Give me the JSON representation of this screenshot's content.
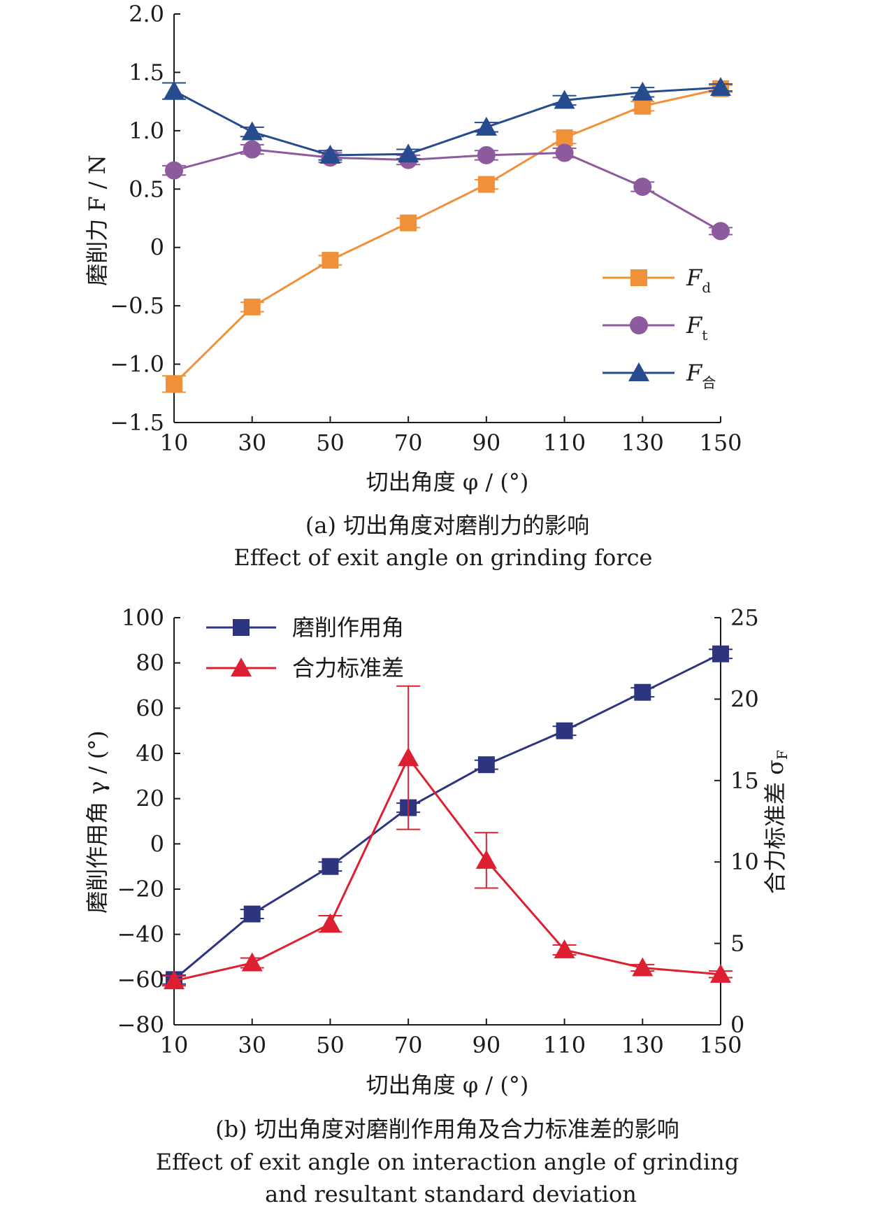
{
  "chart_data": [
    {
      "type": "line",
      "x": [
        10,
        30,
        50,
        70,
        90,
        110,
        130,
        150
      ],
      "xticks": [
        "10",
        "30",
        "50",
        "70",
        "90",
        "110",
        "130",
        "150"
      ],
      "xlim": [
        10,
        150
      ],
      "ylim": [
        -1.5,
        2.0
      ],
      "yticks": [
        "2.0",
        "1.5",
        "1.0",
        "0.5",
        "0",
        "−0.5",
        "−1.0",
        "−1.5"
      ],
      "ytick_values": [
        2.0,
        1.5,
        1.0,
        0.5,
        0,
        -0.5,
        -1.0,
        -1.5
      ],
      "xlabel": "切出角度 φ / (°)",
      "ylabel": "磨削力 F / N",
      "caption_cn": "(a) 切出角度对磨削力的影响",
      "caption_en": "Effect of exit angle on grinding force",
      "legend_position": "lower-right",
      "grid": false,
      "series": [
        {
          "name": "F",
          "sub": "d",
          "marker": "square",
          "color": "#f0913a",
          "values": [
            -1.17,
            -0.51,
            -0.11,
            0.21,
            0.54,
            0.94,
            1.21,
            1.36
          ],
          "errors": [
            0.07,
            0.04,
            0.04,
            0.04,
            0.04,
            0.05,
            0.04,
            0.03
          ]
        },
        {
          "name": "F",
          "sub": "t",
          "marker": "circle",
          "color": "#8e5a9e",
          "values": [
            0.66,
            0.84,
            0.77,
            0.75,
            0.79,
            0.81,
            0.52,
            0.14
          ],
          "errors": [
            0.04,
            0.04,
            0.04,
            0.04,
            0.04,
            0.04,
            0.04,
            0.03
          ]
        },
        {
          "name": "F",
          "sub": "合",
          "marker": "triangle",
          "color": "#264c8f",
          "values": [
            1.34,
            0.99,
            0.79,
            0.8,
            1.03,
            1.26,
            1.33,
            1.37
          ],
          "errors": [
            0.07,
            0.04,
            0.04,
            0.04,
            0.04,
            0.04,
            0.04,
            0.03
          ]
        }
      ]
    },
    {
      "type": "line",
      "x": [
        10,
        30,
        50,
        70,
        90,
        110,
        130,
        150
      ],
      "xticks": [
        "10",
        "30",
        "50",
        "70",
        "90",
        "110",
        "130",
        "150"
      ],
      "xlim": [
        10,
        150
      ],
      "ylim": [
        -80,
        100
      ],
      "yticks": [
        "100",
        "80",
        "60",
        "40",
        "20",
        "0",
        "−20",
        "−40",
        "−60",
        "−80"
      ],
      "ytick_values": [
        100,
        80,
        60,
        40,
        20,
        0,
        -20,
        -40,
        -60,
        -80
      ],
      "y2lim": [
        0,
        25
      ],
      "y2ticks": [
        "25",
        "20",
        "15",
        "10",
        "5",
        "0"
      ],
      "y2tick_values": [
        25,
        20,
        15,
        10,
        5,
        0
      ],
      "xlabel": "切出角度 φ / (°)",
      "ylabel": "磨削作用角 γ / (°)",
      "y2label": "合力标准差 σ",
      "y2label_sub": "F",
      "caption_cn": "(b) 切出角度对磨削作用角及合力标准差的影响",
      "caption_en_1": "Effect of exit angle on interaction angle of grinding",
      "caption_en_2": "and resultant standard deviation",
      "legend_position": "top-left",
      "grid": false,
      "series": [
        {
          "name": "磨削作用角",
          "axis": "left",
          "marker": "square",
          "color": "#2e3580",
          "values": [
            -60,
            -31,
            -10,
            16,
            35,
            50,
            67,
            84
          ],
          "errors": [
            2,
            2,
            2,
            2,
            2,
            2,
            2,
            2
          ]
        },
        {
          "name": "合力标准差",
          "axis": "right",
          "marker": "triangle",
          "color": "#dd2031",
          "values": [
            2.7,
            3.8,
            6.2,
            16.4,
            10.1,
            4.6,
            3.5,
            3.1
          ],
          "errors": [
            0.3,
            0.3,
            0.5,
            4.4,
            1.7,
            0.3,
            0.2,
            0.2
          ]
        }
      ]
    }
  ]
}
